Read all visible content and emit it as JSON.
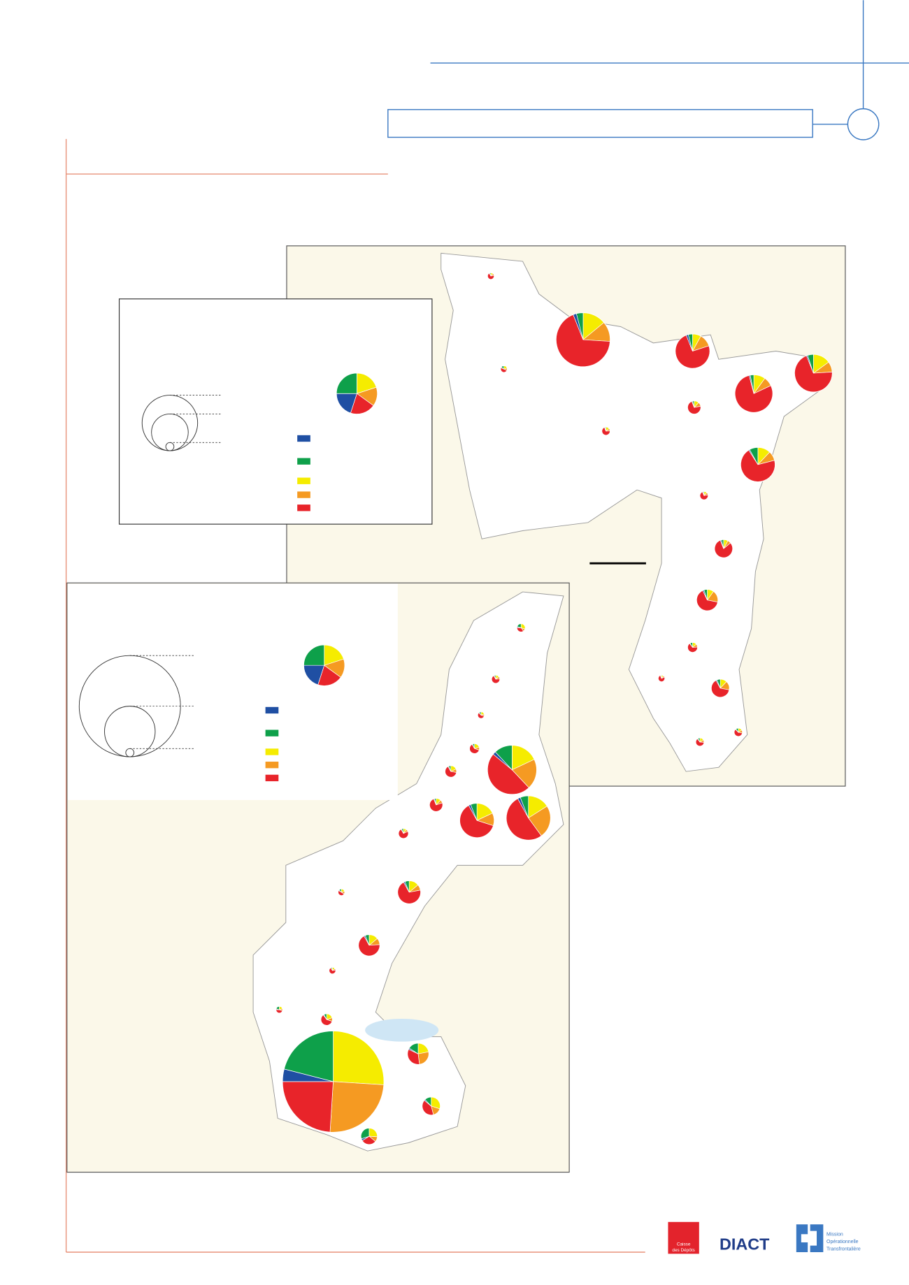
{
  "colors": [
    "#1f4fa3",
    "#0ea04a",
    "#f5ec00",
    "#f59a22",
    "#e8242a"
  ],
  "maps": [
    {
      "legend_pie": [
        20,
        25,
        20,
        15,
        20
      ],
      "size_legend": [
        1156,
        506,
        25
      ],
      "pies": [
        {
          "total": 16,
          "values": [
            2,
            6,
            12,
            10,
            70
          ]
        },
        {
          "total": 1089,
          "values": [
            2,
            4,
            14,
            12,
            68
          ]
        },
        {
          "total": 441,
          "values": [
            2,
            4,
            8,
            12,
            74
          ]
        },
        {
          "total": 529,
          "values": [
            1,
            5,
            15,
            9,
            70
          ]
        },
        {
          "total": 529,
          "values": [
            1,
            3,
            10,
            8,
            78
          ]
        },
        {
          "total": 16,
          "values": [
            3,
            15,
            20,
            12,
            50
          ]
        },
        {
          "total": 64,
          "values": [
            2,
            4,
            12,
            10,
            72
          ]
        },
        {
          "total": 25,
          "values": [
            2,
            4,
            14,
            10,
            70
          ]
        },
        {
          "total": 441,
          "values": [
            1,
            8,
            12,
            9,
            70
          ]
        },
        {
          "total": 25,
          "values": [
            2,
            4,
            12,
            10,
            72
          ]
        },
        {
          "total": 121,
          "values": [
            2,
            4,
            8,
            6,
            80
          ]
        },
        {
          "total": 169,
          "values": [
            2,
            5,
            10,
            18,
            65
          ]
        },
        {
          "total": 36,
          "values": [
            2,
            8,
            14,
            10,
            66
          ]
        },
        {
          "total": 16,
          "values": [
            2,
            4,
            10,
            8,
            76
          ]
        },
        {
          "total": 121,
          "values": [
            2,
            6,
            12,
            16,
            64
          ]
        },
        {
          "total": 25,
          "values": [
            2,
            8,
            16,
            10,
            64
          ]
        },
        {
          "total": 25,
          "values": [
            2,
            10,
            16,
            12,
            60
          ]
        }
      ]
    },
    {
      "legend_pie": [
        20,
        25,
        20,
        15,
        20
      ],
      "size_legend": [
        3844,
        961,
        25
      ],
      "pies": [
        {
          "total": 25,
          "values": [
            4,
            20,
            30,
            10,
            36
          ]
        },
        {
          "total": 25,
          "values": [
            2,
            6,
            14,
            10,
            68
          ]
        },
        {
          "total": 16,
          "values": [
            2,
            10,
            20,
            10,
            58
          ]
        },
        {
          "total": 36,
          "values": [
            2,
            6,
            20,
            10,
            62
          ]
        },
        {
          "total": 900,
          "values": [
            2,
            12,
            18,
            20,
            48
          ]
        },
        {
          "total": 49,
          "values": [
            2,
            6,
            18,
            10,
            64
          ]
        },
        {
          "total": 64,
          "values": [
            2,
            4,
            12,
            8,
            74
          ]
        },
        {
          "total": 441,
          "values": [
            2,
            6,
            18,
            12,
            62
          ]
        },
        {
          "total": 729,
          "values": [
            2,
            6,
            16,
            24,
            52
          ]
        },
        {
          "total": 36,
          "values": [
            2,
            6,
            10,
            8,
            74
          ]
        },
        {
          "total": 196,
          "values": [
            2,
            6,
            14,
            8,
            70
          ]
        },
        {
          "total": 16,
          "values": [
            4,
            12,
            20,
            14,
            50
          ]
        },
        {
          "total": 169,
          "values": [
            2,
            6,
            14,
            10,
            68
          ]
        },
        {
          "total": 16,
          "values": [
            2,
            6,
            14,
            8,
            70
          ]
        },
        {
          "total": 16,
          "values": [
            4,
            20,
            20,
            10,
            46
          ]
        },
        {
          "total": 49,
          "values": [
            2,
            8,
            20,
            10,
            60
          ]
        },
        {
          "total": 3844,
          "values": [
            4,
            21,
            26,
            25,
            24
          ]
        },
        {
          "total": 169,
          "values": [
            2,
            16,
            22,
            26,
            34
          ]
        },
        {
          "total": 121,
          "values": [
            2,
            12,
            30,
            16,
            40
          ]
        },
        {
          "total": 100,
          "values": [
            4,
            30,
            26,
            10,
            30
          ]
        }
      ]
    }
  ],
  "logos": {
    "cdc": [
      "Caisse",
      "des Dépôts"
    ],
    "diact": "DIACT",
    "mot": [
      "Mission",
      "Opérationnelle",
      "Transfrontalière"
    ]
  }
}
